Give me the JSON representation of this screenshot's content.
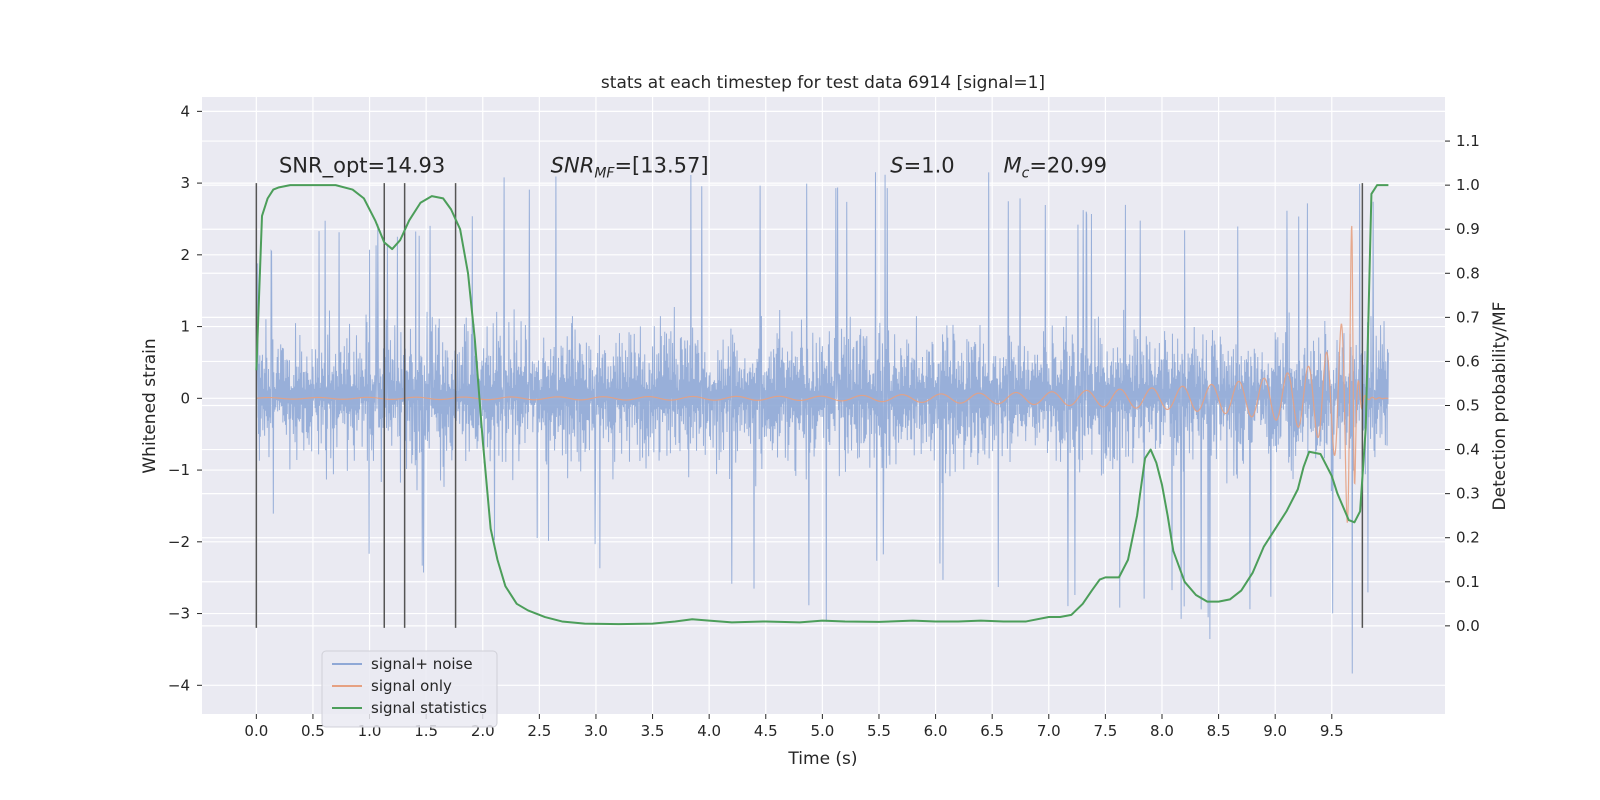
{
  "chart_data": {
    "type": "line",
    "title": "stats at each timestep for test data 6914 [signal=1]",
    "xlabel": "Time (s)",
    "ylabel": "Whitened strain",
    "y2label": "Detection probability/MF",
    "xlim": [
      -0.48,
      10.5
    ],
    "ylim": [
      -4.4,
      4.2
    ],
    "y2lim": [
      -0.2,
      1.2
    ],
    "x_ticks": [
      0.0,
      0.5,
      1.0,
      1.5,
      2.0,
      2.5,
      3.0,
      3.5,
      4.0,
      4.5,
      5.0,
      5.5,
      6.0,
      6.5,
      7.0,
      7.5,
      8.0,
      8.5,
      9.0,
      9.5
    ],
    "x_tick_labels": [
      "0.0",
      "0.5",
      "1.0",
      "1.5",
      "2.0",
      "2.5",
      "3.0",
      "3.5",
      "4.0",
      "4.5",
      "5.0",
      "5.5",
      "6.0",
      "6.5",
      "7.0",
      "7.5",
      "8.0",
      "8.5",
      "9.0",
      "9.5"
    ],
    "y_ticks": [
      4,
      3,
      2,
      1,
      0,
      -1,
      -2,
      -3,
      -4
    ],
    "y_tick_labels": [
      "4",
      "3",
      "2",
      "1",
      "0",
      "−1",
      "−2",
      "−3",
      "−4"
    ],
    "y2_ticks": [
      1.1,
      1.0,
      0.9,
      0.8,
      0.7,
      0.6,
      0.5,
      0.4,
      0.3,
      0.2,
      0.1,
      0.0
    ],
    "y2_tick_labels": [
      "1.1",
      "1.0",
      "0.9",
      "0.8",
      "0.7",
      "0.6",
      "0.5",
      "0.4",
      "0.3",
      "0.2",
      "0.1",
      "0.0"
    ],
    "grid": true,
    "legend_position": "lower-left",
    "annotations": [
      {
        "text": "SNR_opt=14.93",
        "x": 0.2,
        "y": 3.15
      },
      {
        "base": "SNR",
        "sub": "MF",
        "rest": "=[13.57]",
        "x": 2.6,
        "y": 3.15
      },
      {
        "base": "S",
        "rest": "=1.0",
        "x": 5.6,
        "y": 3.15
      },
      {
        "base": "M",
        "sub": "c",
        "rest": "=20.99",
        "x": 6.6,
        "y": 3.15
      }
    ],
    "vertical_lines": [
      0.0,
      1.13,
      1.31,
      1.76,
      9.77
    ],
    "vline_range": [
      -3.2,
      3.0
    ],
    "series": [
      {
        "name": "signal+ noise",
        "color": "#8fa8d6",
        "style": "dense noise trace (whitened strain), approx ±1.1 core with peaks to ±3.8",
        "envelope_x": [
          0.0,
          0.5,
          1.0,
          1.5,
          2.0,
          2.5,
          3.0,
          3.5,
          4.0,
          4.5,
          5.0,
          5.5,
          6.0,
          6.5,
          7.0,
          7.5,
          8.0,
          8.5,
          9.0,
          9.5,
          9.67,
          9.75,
          10.0
        ],
        "envelope_upper": [
          2.2,
          2.5,
          2.4,
          2.6,
          2.9,
          3.5,
          3.0,
          3.3,
          3.4,
          3.4,
          3.1,
          3.3,
          3.5,
          3.2,
          3.0,
          2.7,
          2.7,
          2.7,
          2.6,
          2.9,
          3.8,
          3.3,
          2.6
        ],
        "envelope_lower": [
          -1.6,
          -2.5,
          -2.3,
          -2.5,
          -2.2,
          -2.2,
          -2.3,
          -3.6,
          -2.6,
          -2.7,
          -3.3,
          -2.5,
          -2.6,
          -2.9,
          -2.9,
          -3.2,
          -3.0,
          -3.6,
          -2.7,
          -3.0,
          -4.0,
          -3.4,
          -1.5
        ]
      },
      {
        "name": "signal only",
        "color": "#e6a182",
        "style": "chirp, amplitude grows to merger near t=9.68 s",
        "amplitude_x": [
          0.0,
          5.0,
          6.0,
          7.0,
          7.5,
          8.0,
          8.5,
          9.0,
          9.3,
          9.5,
          9.6,
          9.68,
          9.72,
          9.8,
          10.0
        ],
        "amplitude_y": [
          0.01,
          0.03,
          0.06,
          0.09,
          0.12,
          0.15,
          0.2,
          0.3,
          0.45,
          0.7,
          1.1,
          2.5,
          0.3,
          0.02,
          0.0
        ]
      },
      {
        "name": "signal statistics",
        "color": "#4c9e5a",
        "axis": "right",
        "x": [
          0.0,
          0.05,
          0.1,
          0.15,
          0.2,
          0.3,
          0.5,
          0.7,
          0.85,
          0.95,
          1.05,
          1.13,
          1.2,
          1.27,
          1.35,
          1.45,
          1.55,
          1.65,
          1.72,
          1.8,
          1.87,
          1.93,
          2.0,
          2.07,
          2.13,
          2.2,
          2.3,
          2.4,
          2.55,
          2.7,
          2.9,
          3.2,
          3.5,
          3.7,
          3.85,
          4.0,
          4.2,
          4.5,
          4.8,
          5.0,
          5.2,
          5.5,
          5.8,
          6.0,
          6.2,
          6.4,
          6.6,
          6.8,
          7.0,
          7.1,
          7.2,
          7.3,
          7.38,
          7.45,
          7.5,
          7.55,
          7.62,
          7.7,
          7.78,
          7.85,
          7.9,
          7.95,
          8.0,
          8.05,
          8.1,
          8.2,
          8.3,
          8.4,
          8.5,
          8.6,
          8.7,
          8.8,
          8.9,
          9.0,
          9.1,
          9.2,
          9.25,
          9.3,
          9.4,
          9.5,
          9.55,
          9.6,
          9.65,
          9.7,
          9.75,
          9.8,
          9.85,
          9.9,
          10.0
        ],
        "values": [
          0.58,
          0.93,
          0.97,
          0.99,
          0.995,
          1.0,
          1.0,
          1.0,
          0.99,
          0.97,
          0.92,
          0.87,
          0.855,
          0.875,
          0.92,
          0.96,
          0.975,
          0.97,
          0.945,
          0.9,
          0.8,
          0.65,
          0.42,
          0.22,
          0.15,
          0.09,
          0.05,
          0.035,
          0.02,
          0.01,
          0.005,
          0.004,
          0.005,
          0.01,
          0.015,
          0.012,
          0.008,
          0.01,
          0.008,
          0.012,
          0.01,
          0.009,
          0.012,
          0.01,
          0.01,
          0.012,
          0.01,
          0.01,
          0.02,
          0.02,
          0.025,
          0.05,
          0.08,
          0.105,
          0.11,
          0.11,
          0.11,
          0.15,
          0.25,
          0.38,
          0.4,
          0.37,
          0.32,
          0.25,
          0.17,
          0.1,
          0.07,
          0.055,
          0.055,
          0.06,
          0.08,
          0.12,
          0.18,
          0.22,
          0.26,
          0.31,
          0.36,
          0.395,
          0.39,
          0.34,
          0.3,
          0.27,
          0.24,
          0.235,
          0.26,
          0.45,
          0.98,
          1.0,
          1.0
        ]
      }
    ]
  }
}
